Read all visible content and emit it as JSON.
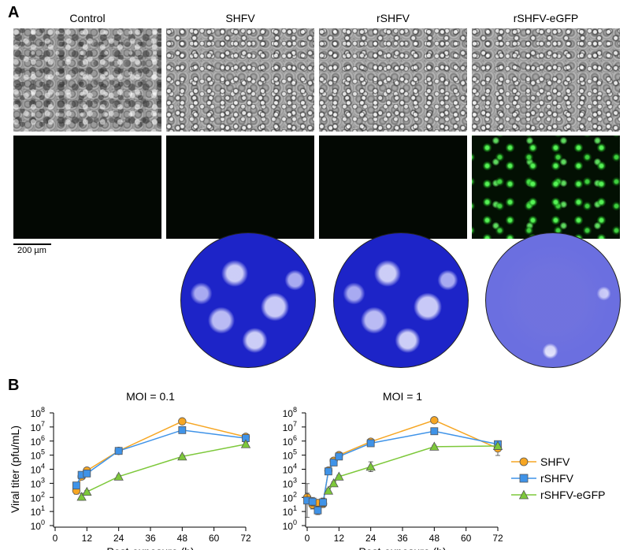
{
  "panel_a": {
    "letter": "A",
    "columns": [
      "Control",
      "SHFV",
      "rSHFV",
      "rSHFV-eGFP"
    ],
    "scale_bar": "200 µm"
  },
  "panel_b": {
    "letter": "B",
    "legend": [
      {
        "name": "SHFV",
        "color": "#f6a623",
        "marker": "circle"
      },
      {
        "name": "rSHFV",
        "color": "#3f93e8",
        "marker": "square"
      },
      {
        "name": "rSHFV-eGFP",
        "color": "#7dc83a",
        "marker": "triangle"
      }
    ]
  },
  "chart_data": [
    {
      "type": "line",
      "title": "MOI = 0.1",
      "xlabel": "Post-exposure (h)",
      "ylabel": "Viral titer (pfu/mL)",
      "xlim": [
        0,
        72
      ],
      "xticks": [
        0,
        12,
        24,
        36,
        48,
        60,
        72
      ],
      "yscale": "log",
      "ylim_exponents": [
        0,
        8
      ],
      "yticks": [
        "10^0",
        "10^1",
        "10^2",
        "10^3",
        "10^4",
        "10^5",
        "10^6",
        "10^7",
        "10^8"
      ],
      "series": [
        {
          "name": "SHFV",
          "x": [
            8,
            10,
            12,
            24,
            48,
            72
          ],
          "y": [
            300,
            3000,
            8000,
            200000,
            25000000,
            2000000
          ],
          "err": [
            0.25,
            0.1,
            0.1,
            0.1,
            0.1,
            0.1
          ]
        },
        {
          "name": "rSHFV",
          "x": [
            8,
            10,
            12,
            24,
            48,
            72
          ],
          "y": [
            700,
            4000,
            5000,
            200000,
            6000000,
            1600000
          ],
          "err": [
            0.15,
            0.1,
            0.1,
            0.1,
            0.1,
            0.1
          ]
        },
        {
          "name": "rSHFV-eGFP",
          "x": [
            10,
            12,
            24,
            48,
            72
          ],
          "y": [
            110,
            250,
            3000,
            80000,
            600000
          ],
          "err": [
            0.25,
            0.1,
            0.1,
            0.1,
            0.15
          ]
        }
      ]
    },
    {
      "type": "line",
      "title": "MOI = 1",
      "xlabel": "Post-exposure (h)",
      "ylabel": "",
      "xlim": [
        0,
        72
      ],
      "xticks": [
        0,
        12,
        24,
        36,
        48,
        60,
        72
      ],
      "yscale": "log",
      "ylim_exponents": [
        0,
        8
      ],
      "yticks": [
        "10^0",
        "10^1",
        "10^2",
        "10^3",
        "10^4",
        "10^5",
        "10^6",
        "10^7",
        "10^8"
      ],
      "series": [
        {
          "name": "SHFV",
          "x": [
            0,
            2,
            4,
            6,
            8,
            10,
            12,
            24,
            48,
            72
          ],
          "y": [
            100,
            30,
            40,
            35,
            8000,
            40000,
            100000,
            900000,
            30000000,
            300000
          ],
          "err": [
            0.3,
            0.3,
            0.25,
            0.25,
            0.1,
            0.1,
            0.1,
            0.1,
            0.1,
            0.5
          ]
        },
        {
          "name": "rSHFV",
          "x": [
            0,
            2,
            4,
            6,
            8,
            10,
            12,
            24,
            48,
            72
          ],
          "y": [
            60,
            50,
            12,
            45,
            7000,
            30000,
            80000,
            700000,
            5000000,
            600000
          ],
          "err": [
            1.2,
            0.3,
            0.3,
            0.3,
            0.1,
            0.1,
            0.1,
            0.1,
            0.1,
            0.15
          ]
        },
        {
          "name": "rSHFV-eGFP",
          "x": [
            8,
            10,
            12,
            24,
            48,
            72
          ],
          "y": [
            300,
            1000,
            3000,
            15000,
            400000,
            450000
          ],
          "err": [
            0.15,
            0.1,
            0.1,
            0.35,
            0.1,
            0.1
          ]
        }
      ]
    }
  ]
}
